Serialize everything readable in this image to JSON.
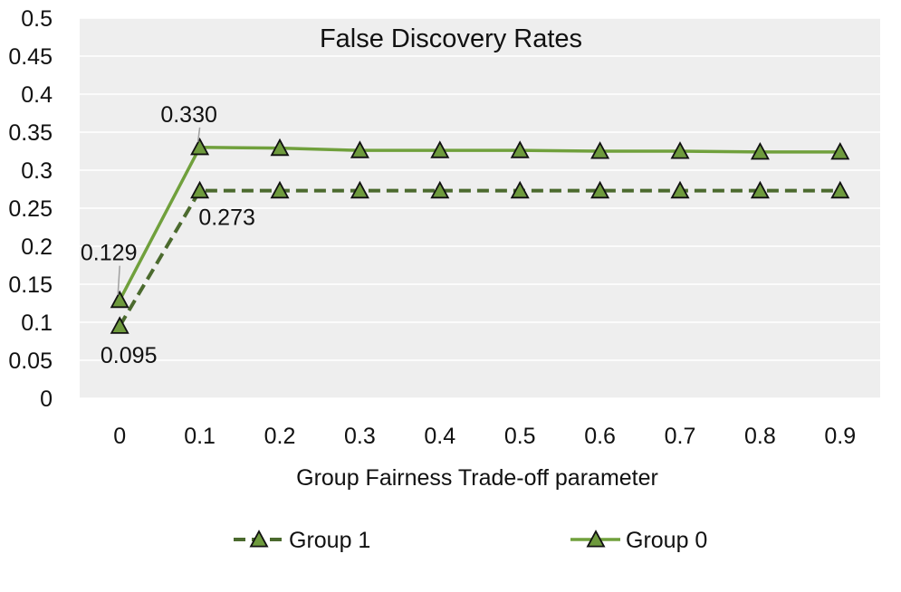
{
  "chart_data": {
    "type": "line",
    "title": "False Discovery Rates",
    "xlabel": "Group Fairness Trade-off parameter",
    "ylabel": "",
    "categories": [
      "0",
      "0.1",
      "0.2",
      "0.3",
      "0.4",
      "0.5",
      "0.6",
      "0.7",
      "0.8",
      "0.9"
    ],
    "ylim": [
      0,
      0.5
    ],
    "yticks": [
      "0",
      "0.05",
      "0.1",
      "0.15",
      "0.2",
      "0.25",
      "0.3",
      "0.35",
      "0.4",
      "0.45",
      "0.5"
    ],
    "grid": true,
    "legend_position": "bottom",
    "series": [
      {
        "name": "Group 1",
        "style": "dashed",
        "values": [
          0.095,
          0.273,
          0.273,
          0.273,
          0.273,
          0.273,
          0.273,
          0.273,
          0.273,
          0.273
        ],
        "labels": [
          {
            "index": 0,
            "text": "0.095"
          },
          {
            "index": 1,
            "text": "0.273"
          }
        ]
      },
      {
        "name": "Group 0",
        "style": "solid",
        "values": [
          0.129,
          0.33,
          0.329,
          0.326,
          0.326,
          0.326,
          0.325,
          0.325,
          0.324,
          0.324
        ],
        "labels": [
          {
            "index": 0,
            "text": "0.129"
          },
          {
            "index": 1,
            "text": "0.330"
          }
        ]
      }
    ],
    "colors": {
      "plot_background": "#eeeeee",
      "gridline": "#ffffff",
      "group1_line": "#4b6a2e",
      "group0_line": "#70a03c",
      "marker_fill": "#6e9a3d",
      "marker_stroke": "#111111",
      "leader_line": "#a0a0a0"
    }
  }
}
